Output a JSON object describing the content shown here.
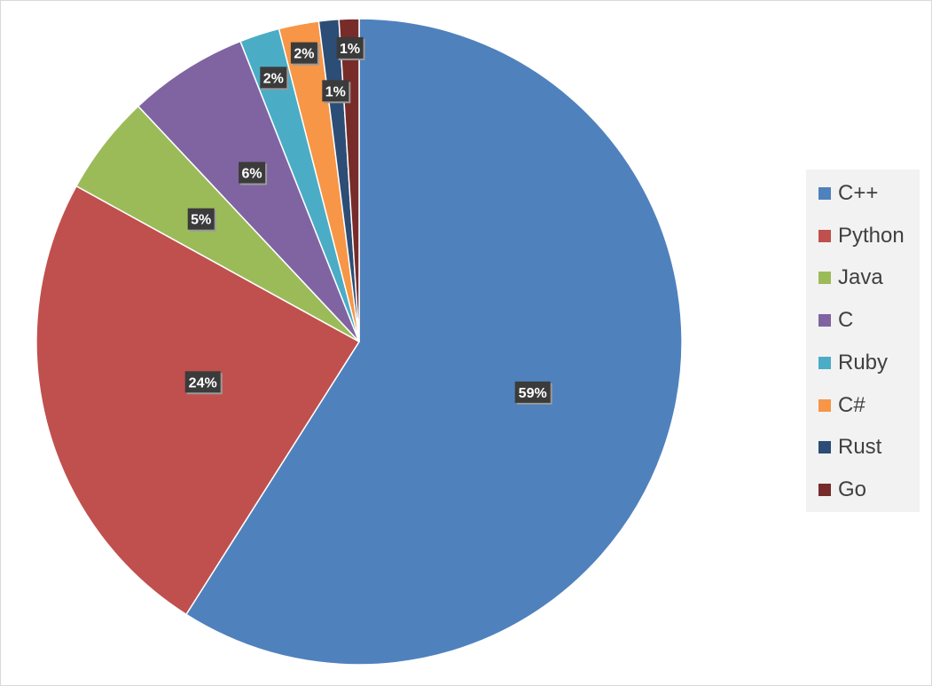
{
  "chart_data": {
    "type": "pie",
    "title": "",
    "legend_position": "right",
    "slices": [
      {
        "label": "C++",
        "value": 59,
        "display": "59%",
        "color": "#4f81bd"
      },
      {
        "label": "Python",
        "value": 24,
        "display": "24%",
        "color": "#c0504d"
      },
      {
        "label": "Java",
        "value": 5,
        "display": "5%",
        "color": "#9bbb59"
      },
      {
        "label": "C",
        "value": 6,
        "display": "6%",
        "color": "#8064a2"
      },
      {
        "label": "Ruby",
        "value": 2,
        "display": "2%",
        "color": "#4bacc6"
      },
      {
        "label": "C#",
        "value": 2,
        "display": "2%",
        "color": "#f79646"
      },
      {
        "label": "Rust",
        "value": 1,
        "display": "1%",
        "color": "#2c4d75"
      },
      {
        "label": "Go",
        "value": 1,
        "display": "1%",
        "color": "#772c2a"
      }
    ]
  }
}
